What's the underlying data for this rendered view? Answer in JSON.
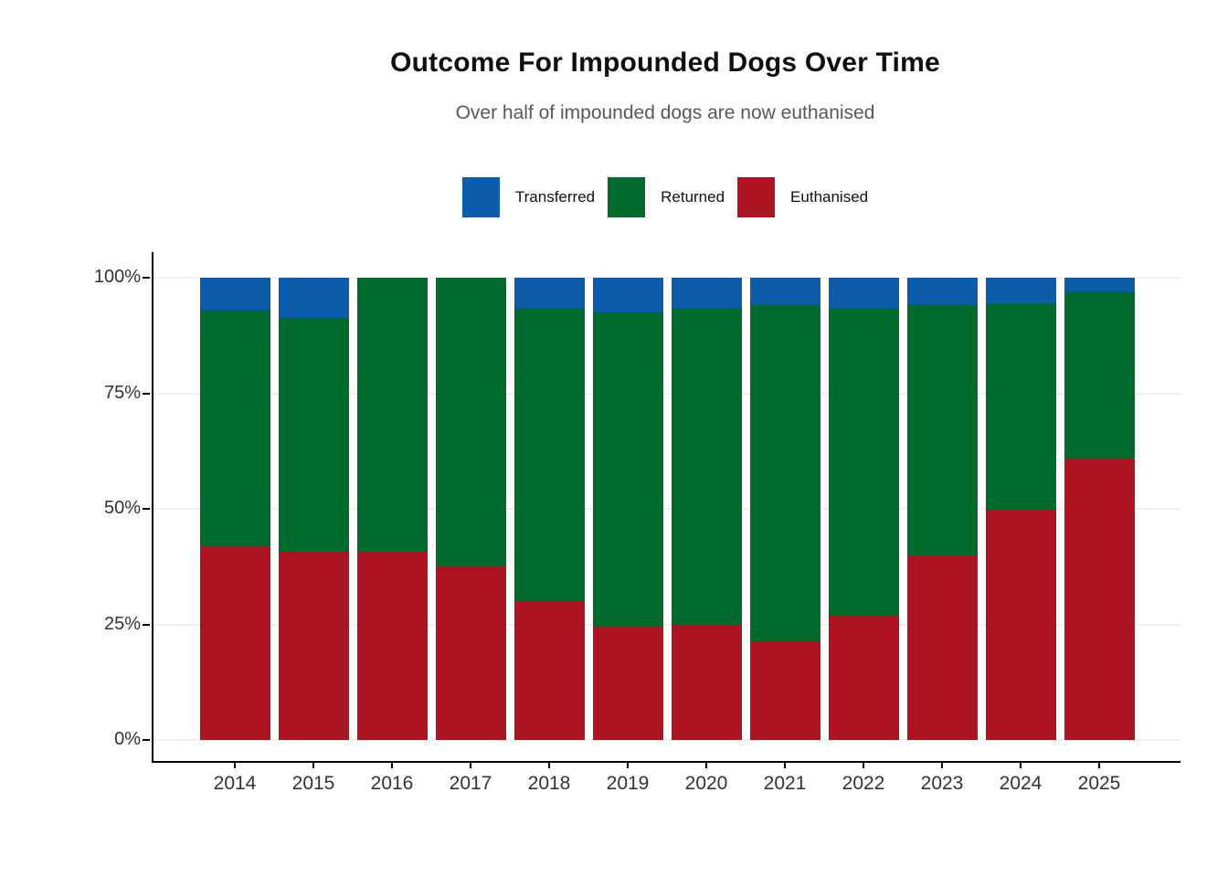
{
  "page": {
    "title": "Outcome For Impounded Dogs Over Time",
    "subtitle": "Over half of impounded dogs are now euthanised"
  },
  "legend": {
    "position": "top-center",
    "items": [
      {
        "label": "Transferred",
        "color": "#0d5caa"
      },
      {
        "label": "Returned",
        "color": "#006b2f"
      },
      {
        "label": "Euthanised",
        "color": "#ab1420"
      }
    ]
  },
  "chart_data": {
    "type": "bar",
    "stacked": true,
    "percent_stacked": true,
    "title": "Outcome For Impounded Dogs Over Time",
    "subtitle": "Over half of impounded dogs are now euthanised",
    "xlabel": "",
    "ylabel": "",
    "categories": [
      "2014",
      "2015",
      "2016",
      "2017",
      "2018",
      "2019",
      "2020",
      "2021",
      "2022",
      "2023",
      "2024",
      "2025"
    ],
    "series": [
      {
        "name": "Euthanised",
        "color": "#ab1420",
        "values": [
          42,
          41,
          41,
          37.5,
          30,
          24.5,
          25,
          21.5,
          27,
          40,
          50,
          61
        ]
      },
      {
        "name": "Returned",
        "color": "#006b2f",
        "values": [
          51,
          50.5,
          59,
          62.5,
          63.5,
          68,
          68.5,
          72.5,
          66.5,
          54,
          44.5,
          36
        ]
      },
      {
        "name": "Transferred",
        "color": "#0d5caa",
        "values": [
          7,
          8.5,
          0,
          0,
          6.5,
          7.5,
          6.5,
          6,
          6.5,
          6,
          5.5,
          3
        ]
      }
    ],
    "stack_order_bottom_to_top": [
      "Euthanised",
      "Returned",
      "Transferred"
    ],
    "ylim": [
      0,
      100
    ],
    "y_ticks": [
      {
        "value": 0,
        "label": "0%"
      },
      {
        "value": 25,
        "label": "25%"
      },
      {
        "value": 50,
        "label": "50%"
      },
      {
        "value": 75,
        "label": "75%"
      },
      {
        "value": 100,
        "label": "100%"
      }
    ],
    "grid": "horizontal-light",
    "legend_position": "top",
    "colors": {
      "grid": "#efefef",
      "axis": "#000000",
      "axis_text": "#333333",
      "subtitle_text": "#58585a"
    }
  }
}
